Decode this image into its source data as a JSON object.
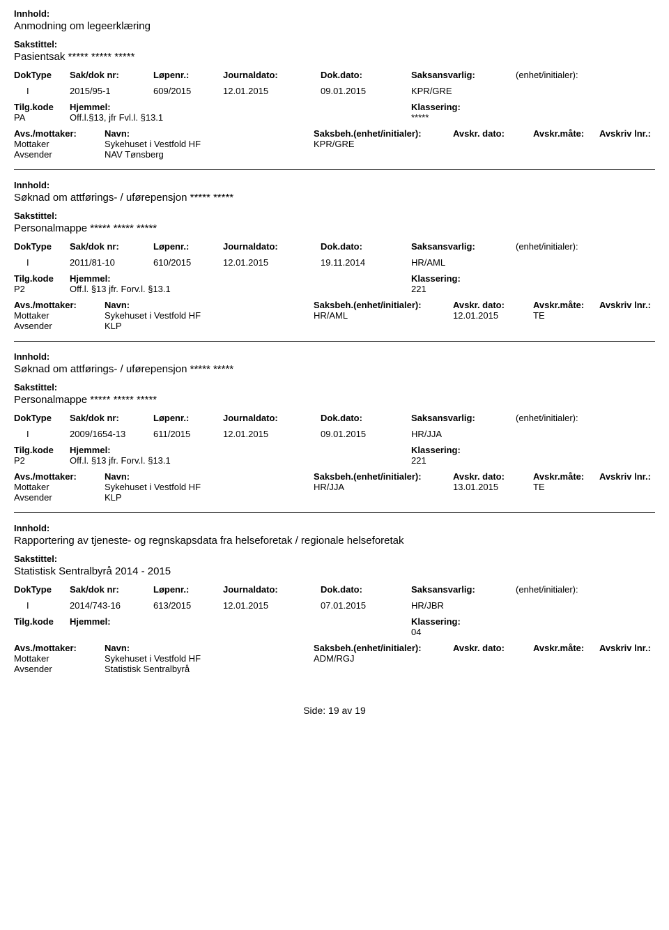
{
  "labels": {
    "innhold": "Innhold:",
    "sakstittel": "Sakstittel:",
    "doktype": "DokType",
    "sakdok": "Sak/dok nr:",
    "lopenr": "Løpenr.:",
    "journaldato": "Journaldato:",
    "dokdato": "Dok.dato:",
    "saksansvarlig": "Saksansvarlig:",
    "enhet": "(enhet/initialer):",
    "tilgkode": "Tilg.kode",
    "hjemmel": "Hjemmel:",
    "klassering": "Klassering:",
    "avsmottaker": "Avs./mottaker:",
    "navn": "Navn:",
    "saksbeh": "Saksbeh.(enhet/initialer):",
    "avskrdato": "Avskr. dato:",
    "avskrmate": "Avskr.måte:",
    "avskrivlnr": "Avskriv lnr.:",
    "mottaker": "Mottaker",
    "avsender": "Avsender",
    "side": "Side:",
    "av": "av"
  },
  "records": [
    {
      "innhold": "Anmodning om legeerklæring",
      "sakstittel": "Pasientsak ***** ***** *****",
      "doktype": "I",
      "sakdok": "2015/95-1",
      "lopenr": "609/2015",
      "journaldato": "12.01.2015",
      "dokdato": "09.01.2015",
      "saksansvarlig": "KPR/GRE",
      "enhet": "",
      "tilgkode": "PA",
      "hjemmel": "Off.l.§13, jfr Fvl.l. §13.1",
      "klassering": "*****",
      "parties": [
        {
          "role": "Mottaker",
          "navn": "Sykehuset i Vestfold HF",
          "saksbeh": "KPR/GRE",
          "avdato": "",
          "avmate": "",
          "avlnr": ""
        },
        {
          "role": "Avsender",
          "navn": "NAV Tønsberg",
          "saksbeh": "",
          "avdato": "",
          "avmate": "",
          "avlnr": ""
        }
      ]
    },
    {
      "innhold": "Søknad om attførings- / uførepensjon ***** *****",
      "sakstittel": "Personalmappe ***** ***** *****",
      "doktype": "I",
      "sakdok": "2011/81-10",
      "lopenr": "610/2015",
      "journaldato": "12.01.2015",
      "dokdato": "19.11.2014",
      "saksansvarlig": "HR/AML",
      "enhet": "",
      "tilgkode": "P2",
      "hjemmel": "Off.l. §13  jfr. Forv.l. §13.1",
      "klassering": "221",
      "parties": [
        {
          "role": "Mottaker",
          "navn": "Sykehuset i Vestfold HF",
          "saksbeh": "HR/AML",
          "avdato": "12.01.2015",
          "avmate": "TE",
          "avlnr": ""
        },
        {
          "role": "Avsender",
          "navn": "KLP",
          "saksbeh": "",
          "avdato": "",
          "avmate": "",
          "avlnr": ""
        }
      ]
    },
    {
      "innhold": "Søknad om attførings- / uførepensjon ***** *****",
      "sakstittel": "Personalmappe ***** ***** *****",
      "doktype": "I",
      "sakdok": "2009/1654-13",
      "lopenr": "611/2015",
      "journaldato": "12.01.2015",
      "dokdato": "09.01.2015",
      "saksansvarlig": "HR/JJA",
      "enhet": "",
      "tilgkode": "P2",
      "hjemmel": "Off.l. §13  jfr. Forv.l. §13.1",
      "klassering": "221",
      "parties": [
        {
          "role": "Mottaker",
          "navn": "Sykehuset i Vestfold HF",
          "saksbeh": "HR/JJA",
          "avdato": "13.01.2015",
          "avmate": "TE",
          "avlnr": ""
        },
        {
          "role": "Avsender",
          "navn": "KLP",
          "saksbeh": "",
          "avdato": "",
          "avmate": "",
          "avlnr": ""
        }
      ]
    },
    {
      "innhold": "Rapportering av tjeneste- og regnskapsdata fra helseforetak / regionale helseforetak",
      "sakstittel": "Statistisk Sentralbyrå 2014 - 2015",
      "doktype": "I",
      "sakdok": "2014/743-16",
      "lopenr": "613/2015",
      "journaldato": "12.01.2015",
      "dokdato": "07.01.2015",
      "saksansvarlig": "HR/JBR",
      "enhet": "",
      "tilgkode": "",
      "hjemmel": "",
      "klassering": "04",
      "parties": [
        {
          "role": "Mottaker",
          "navn": "Sykehuset i Vestfold HF",
          "saksbeh": "ADM/RGJ",
          "avdato": "",
          "avmate": "",
          "avlnr": ""
        },
        {
          "role": "Avsender",
          "navn": "Statistisk Sentralbyrå",
          "saksbeh": "",
          "avdato": "",
          "avmate": "",
          "avlnr": ""
        }
      ]
    }
  ],
  "footer": {
    "page": "19",
    "total": "19"
  }
}
